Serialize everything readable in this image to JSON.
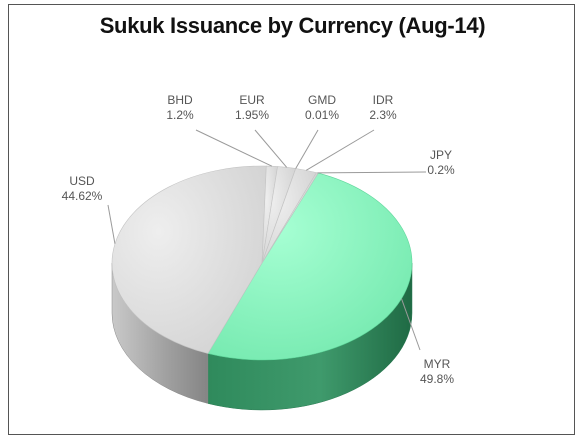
{
  "chart_data": {
    "type": "pie",
    "title": "Sukuk Issuance by Currency (Aug-14)",
    "slices": [
      {
        "label": "MYR",
        "value": 49.8,
        "value_label": "49.8%",
        "color": "#7ff0b8"
      },
      {
        "label": "USD",
        "value": 44.62,
        "value_label": "44.62%",
        "color": "#d6d6d6"
      },
      {
        "label": "BHD",
        "value": 1.2,
        "value_label": "1.2%",
        "color": "#d6d6d6"
      },
      {
        "label": "EUR",
        "value": 1.95,
        "value_label": "1.95%",
        "color": "#d6d6d6"
      },
      {
        "label": "GMD",
        "value": 0.01,
        "value_label": "0.01%",
        "color": "#d6d6d6"
      },
      {
        "label": "IDR",
        "value": 2.3,
        "value_label": "2.3%",
        "color": "#d6d6d6"
      },
      {
        "label": "JPY",
        "value": 0.2,
        "value_label": "0.2%",
        "color": "#d6d6d6"
      }
    ],
    "legend": "none",
    "style": "3d"
  }
}
